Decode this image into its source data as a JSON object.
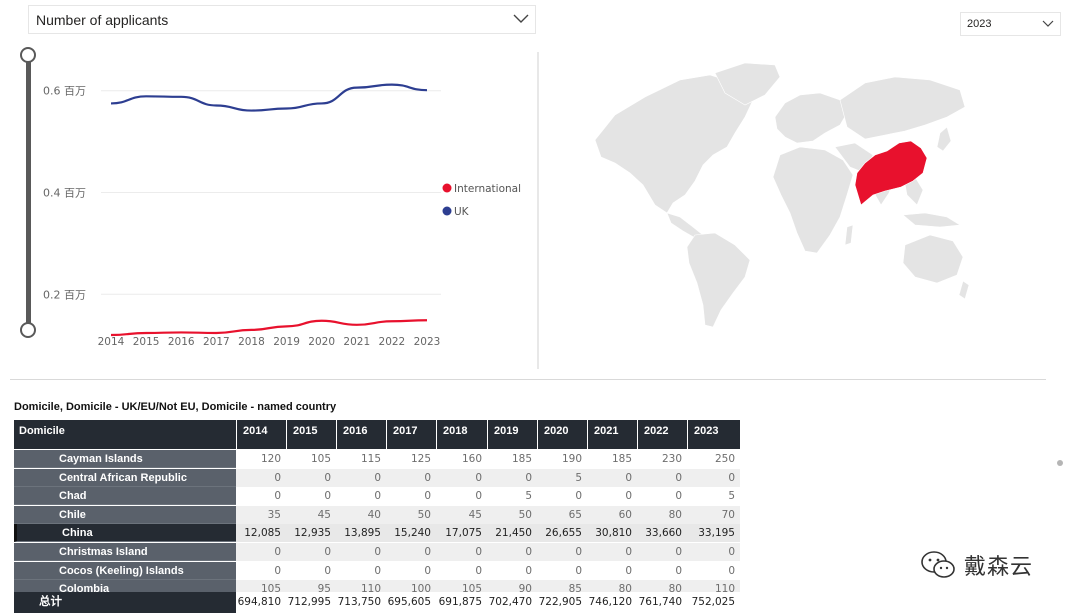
{
  "measure_dropdown": {
    "selected": "Number of applicants"
  },
  "year_dropdown": {
    "selected": "2023"
  },
  "legend": [
    {
      "label": "International",
      "color": "#e8112d"
    },
    {
      "label": "UK",
      "color": "#2d3e91"
    }
  ],
  "chart_data": {
    "type": "line",
    "x": [
      "2014",
      "2015",
      "2016",
      "2017",
      "2018",
      "2019",
      "2020",
      "2021",
      "2022",
      "2023"
    ],
    "y_ticks": [
      "0.6 百万",
      "0.4 百万",
      "0.2 百万"
    ],
    "y_tick_values": [
      0.6,
      0.4,
      0.2
    ],
    "ylim": [
      0.12,
      0.68
    ],
    "series": [
      {
        "name": "UK",
        "color": "#2d3e91",
        "values": [
          0.575,
          0.589,
          0.588,
          0.571,
          0.561,
          0.565,
          0.575,
          0.606,
          0.612,
          0.601
        ]
      },
      {
        "name": "International",
        "color": "#e8112d",
        "values": [
          0.12,
          0.124,
          0.125,
          0.124,
          0.13,
          0.137,
          0.148,
          0.14,
          0.147,
          0.149
        ]
      }
    ],
    "grid": true,
    "legend_position": "right"
  },
  "map": {
    "highlighted_country": "China",
    "highlight_color": "#e8112d",
    "land_color": "#e4e4e4"
  },
  "table": {
    "title": "Domicile, Domicile - UK/EU/Not EU, Domicile - named country",
    "header": [
      "Domicile",
      "2014",
      "2015",
      "2016",
      "2017",
      "2018",
      "2019",
      "2020",
      "2021",
      "2022",
      "2023"
    ],
    "rows": [
      {
        "name": "Cayman Islands",
        "values": [
          "120",
          "105",
          "115",
          "125",
          "160",
          "185",
          "190",
          "185",
          "230",
          "250"
        ]
      },
      {
        "name": "Central African Republic",
        "values": [
          "0",
          "0",
          "0",
          "0",
          "0",
          "0",
          "5",
          "0",
          "0",
          "0"
        ]
      },
      {
        "name": "Chad",
        "values": [
          "0",
          "0",
          "0",
          "0",
          "0",
          "5",
          "0",
          "0",
          "0",
          "5"
        ]
      },
      {
        "name": "Chile",
        "values": [
          "35",
          "45",
          "40",
          "50",
          "45",
          "50",
          "65",
          "60",
          "80",
          "70"
        ]
      },
      {
        "name": "China",
        "values": [
          "12,085",
          "12,935",
          "13,895",
          "15,240",
          "17,075",
          "21,450",
          "26,655",
          "30,810",
          "33,660",
          "33,195"
        ],
        "selected": true
      },
      {
        "name": "Christmas Island",
        "values": [
          "0",
          "0",
          "0",
          "0",
          "0",
          "0",
          "0",
          "0",
          "0",
          "0"
        ]
      },
      {
        "name": "Cocos (Keeling) Islands",
        "values": [
          "0",
          "0",
          "0",
          "0",
          "0",
          "0",
          "0",
          "0",
          "0",
          "0"
        ]
      },
      {
        "name": "Colombia",
        "values": [
          "105",
          "95",
          "110",
          "100",
          "105",
          "90",
          "85",
          "80",
          "80",
          "110"
        ]
      }
    ],
    "total": {
      "name": "总计",
      "values": [
        "694,810",
        "712,995",
        "713,750",
        "695,605",
        "691,875",
        "702,470",
        "722,905",
        "746,120",
        "761,740",
        "752,025"
      ]
    }
  },
  "watermark": {
    "text": "戴森云"
  }
}
